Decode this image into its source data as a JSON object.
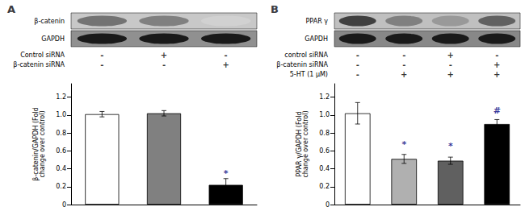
{
  "chart_data": [
    {
      "type": "bar",
      "title": "A",
      "categories": [
        null,
        null,
        null
      ],
      "values": [
        1.01,
        1.02,
        0.22
      ],
      "errors": [
        0.03,
        0.03,
        0.07
      ],
      "colors": [
        "white",
        "#808080",
        "black"
      ],
      "ylabel": "β-catenin/GAPDH (Fold\nchange over control)",
      "ylim": [
        0,
        1.35
      ],
      "yticks": [
        0,
        0.2,
        0.4,
        0.6,
        0.8,
        {
          "value": 1.0,
          "label": "1.0"
        },
        1.2
      ],
      "grid": false,
      "annotations": [
        {
          "text": "*",
          "x": 2,
          "y": 0.3,
          "color": "#000080"
        }
      ],
      "table": {
        "rows": [
          "Control siRNA",
          "β-catenin siRNA"
        ],
        "cells": [
          [
            "-",
            "+",
            "-"
          ],
          [
            "-",
            "-",
            "+"
          ]
        ]
      },
      "blot": {
        "labels": [
          "β-catenin",
          "GAPDH"
        ],
        "bands": [
          [
            0.45,
            0.5,
            0.82
          ],
          [
            0.1,
            0.1,
            0.1
          ]
        ],
        "backgrounds": [
          "#c8c8c8",
          "#909090"
        ]
      }
    },
    {
      "type": "bar",
      "title": "B",
      "categories": [
        null,
        null,
        null,
        null
      ],
      "values": [
        1.02,
        0.51,
        0.49,
        0.9
      ],
      "errors": [
        0.12,
        0.05,
        0.04,
        0.05
      ],
      "colors": [
        "white",
        "#b0b0b0",
        "#606060",
        "black"
      ],
      "ylabel": "PPAR γ/GAPDH (Fold\nchange over control)",
      "ylim": [
        0,
        1.35
      ],
      "yticks": [
        0,
        0.2,
        0.4,
        0.6,
        0.8,
        {
          "value": 1.0,
          "label": "1.0"
        },
        1.2
      ],
      "grid": false,
      "annotations": [
        {
          "text": "*",
          "x": 1,
          "y": 0.62,
          "color": "#000080"
        },
        {
          "text": "*",
          "x": 2,
          "y": 0.6,
          "color": "#000080"
        },
        {
          "text": "#",
          "x": 3,
          "y": 1.0,
          "color": "#000080"
        }
      ],
      "table": {
        "rows": [
          "control siRNA",
          "β-catenin siRNA",
          "5-HT (1 μM)"
        ],
        "cells": [
          [
            "-",
            "-",
            "+",
            "-"
          ],
          [
            "-",
            "-",
            "-",
            "+"
          ],
          [
            "-",
            "+",
            "+",
            "+"
          ]
        ]
      },
      "blot": {
        "labels": [
          "PPAR γ",
          "GAPDH"
        ],
        "bands": [
          [
            0.25,
            0.5,
            0.6,
            0.38
          ],
          [
            0.1,
            0.1,
            0.1,
            0.1
          ]
        ],
        "backgrounds": [
          "#c0c0c0",
          "#888888"
        ]
      }
    }
  ]
}
